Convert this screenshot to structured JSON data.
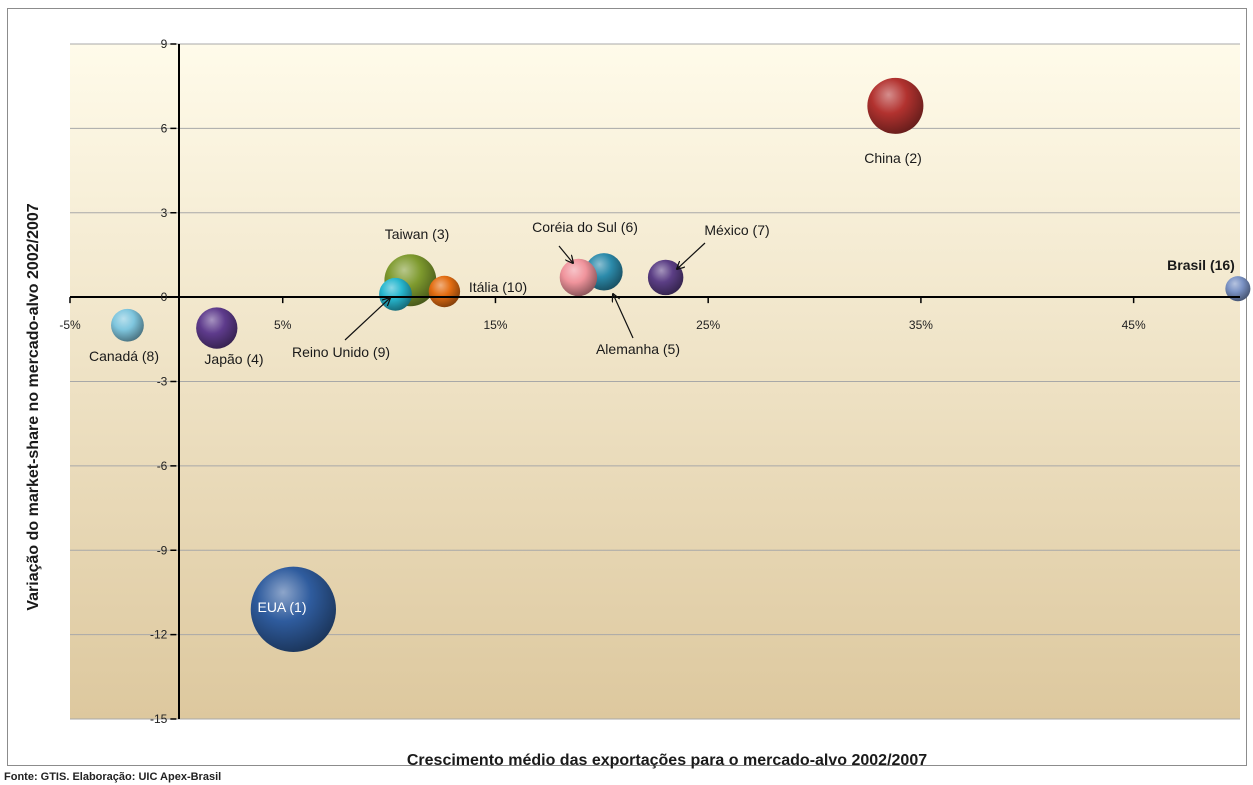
{
  "chart_data": {
    "type": "bubble",
    "xlabel": "Crescimento médio das exportações para o mercado-alvo 2002/2007",
    "ylabel": "Variação do market-share no mercado-alvo 2002/2007",
    "xlim": [
      -0.05,
      0.5
    ],
    "ylim": [
      -15,
      9
    ],
    "x_ticks": [
      -0.05,
      0.05,
      0.15,
      0.25,
      0.35,
      0.45
    ],
    "x_tick_labels": [
      "-5%",
      "5%",
      "15%",
      "25%",
      "35%",
      "45%"
    ],
    "y_ticks": [
      9,
      6,
      3,
      0,
      -3,
      -6,
      -9,
      -12,
      -15
    ],
    "y_tick_labels": [
      "9",
      "6",
      "3",
      "0",
      "-3",
      "-6",
      "-9",
      "-12",
      "-15"
    ],
    "grid": "horizontal",
    "background_gradient": [
      "#fffbea",
      "#ddc89e"
    ],
    "points": [
      {
        "name": "EUA (1)",
        "x": 0.055,
        "y": -11.1,
        "size": 40.5,
        "color": "#2f5c9e"
      },
      {
        "name": "China (2)",
        "x": 0.338,
        "y": 6.8,
        "size": 17.5,
        "color": "#b2322f"
      },
      {
        "name": "Taiwan (3)",
        "x": 0.11,
        "y": 0.6,
        "size": 15.0,
        "color": "#7e9a2e"
      },
      {
        "name": "Japão (4)",
        "x": 0.019,
        "y": -1.1,
        "size": 9.5,
        "color": "#5e3b8c"
      },
      {
        "name": "Alemanha (5)",
        "x": 0.201,
        "y": 0.9,
        "size": 7.8,
        "color": "#2c8bab"
      },
      {
        "name": "Coréia do Sul (6)",
        "x": 0.189,
        "y": 0.7,
        "size": 7.8,
        "color": "#f0949c"
      },
      {
        "name": "México (7)",
        "x": 0.23,
        "y": 0.7,
        "size": 7.0,
        "color": "#5b3e85"
      },
      {
        "name": "Canadá (8)",
        "x": -0.023,
        "y": -1.0,
        "size": 6.0,
        "color": "#7fc6de"
      },
      {
        "name": "Reino Unido (9)",
        "x": 0.103,
        "y": 0.1,
        "size": 6.0,
        "color": "#27b7cf"
      },
      {
        "name": "Itália (10)",
        "x": 0.126,
        "y": 0.2,
        "size": 5.5,
        "color": "#e36d12"
      },
      {
        "name": "Brasil (16)",
        "x": 0.499,
        "y": 0.3,
        "size": 3.5,
        "color": "#7a92c4",
        "bold": true
      }
    ]
  },
  "source": "Fonte: GTIS. Elaboração: UIC Apex-Brasil"
}
